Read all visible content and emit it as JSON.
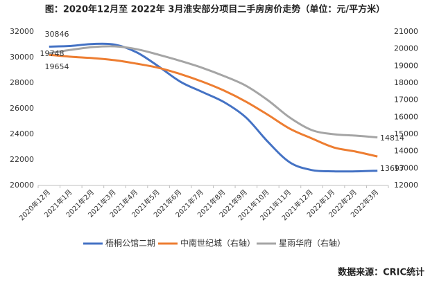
{
  "chart_data": {
    "type": "line",
    "title": "图：2020年12月至 2022年 3月淮安部分项目二手房房价走势（单位：元/平方米）",
    "source": "数据来源：CRIC统计",
    "categories": [
      "2020年12月",
      "2021年1月",
      "2021年2月",
      "2021年3月",
      "2021年4月",
      "2021年5月",
      "2021年6月",
      "2021年7月",
      "2021年8月",
      "2021年9月",
      "2021年10月",
      "2021年11月",
      "2021年12月",
      "2022年1月",
      "2022年2月",
      "2022年3月"
    ],
    "ylim": [
      20000,
      32000
    ],
    "yticks": [
      20000,
      22000,
      24000,
      26000,
      28000,
      30000,
      32000
    ],
    "y2lim": [
      12000,
      21000
    ],
    "y2ticks": [
      12000,
      13000,
      14000,
      15000,
      16000,
      17000,
      18000,
      19000,
      20000,
      21000
    ],
    "grid": false,
    "legend": "bottom",
    "series": [
      {
        "name": "梧桐公馆二期",
        "color": "#4472c4",
        "values": [
          30846,
          30900,
          31050,
          31000,
          30400,
          29300,
          28100,
          27300,
          26500,
          25300,
          23400,
          21800,
          21200,
          21100,
          21100,
          21150
        ]
      },
      {
        "name": "中南世纪城（右轴）",
        "color": "#ed7d31",
        "axis": "y2",
        "values": [
          19654,
          19540,
          19458,
          19337,
          19134,
          18891,
          18526,
          18080,
          17553,
          16905,
          16135,
          15324,
          14756,
          14229,
          13986,
          13697
        ]
      },
      {
        "name": "星雨华府（右轴）",
        "color": "#a5a5a5",
        "axis": "y2",
        "values": [
          19748,
          19945,
          20107,
          20148,
          19985,
          19661,
          19296,
          18891,
          18405,
          17837,
          16986,
          15972,
          15243,
          15000,
          14919,
          14814
        ]
      }
    ]
  }
}
